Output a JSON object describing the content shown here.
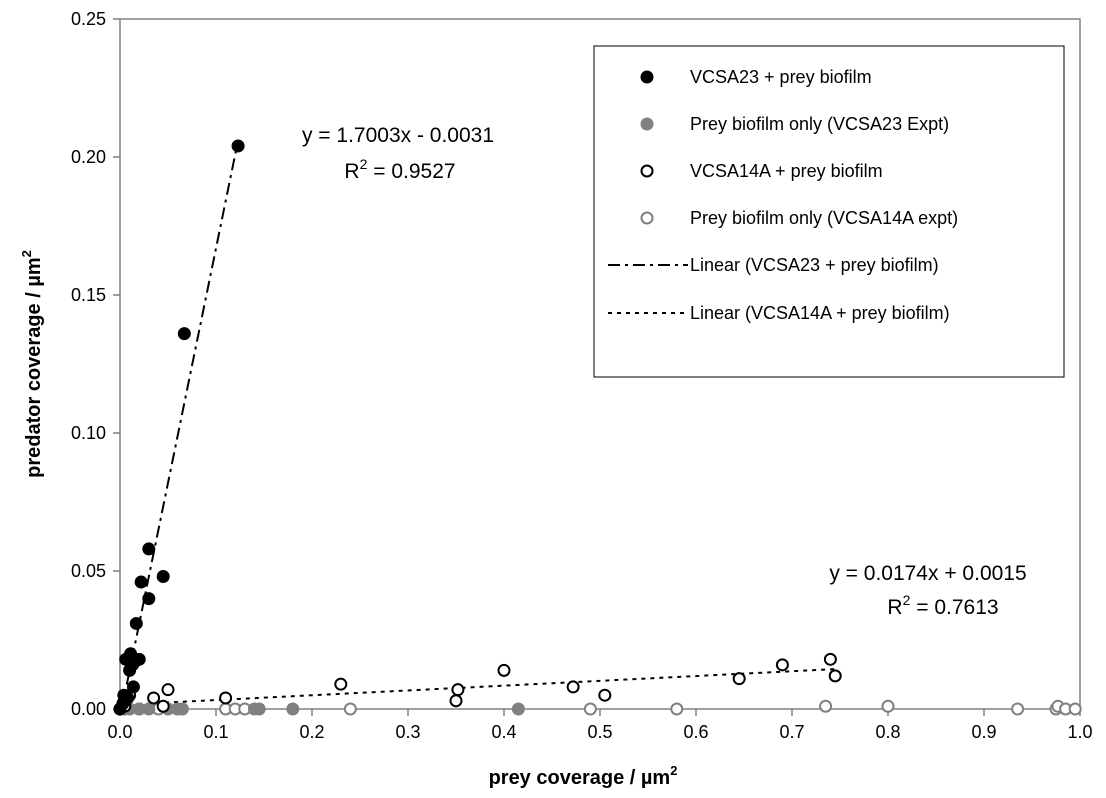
{
  "chart_data": {
    "type": "scatter",
    "title": "",
    "xlabel": "prey coverage / µm",
    "xlabel_sup": "2",
    "ylabel": "predator coverage / µm",
    "ylabel_sup": "2",
    "xlim": [
      0,
      1.0
    ],
    "ylim": [
      0,
      0.25
    ],
    "xticks": [
      "0.0",
      "0.1",
      "0.2",
      "0.3",
      "0.4",
      "0.5",
      "0.6",
      "0.7",
      "0.8",
      "0.9",
      "1.0"
    ],
    "yticks": [
      "0.00",
      "0.05",
      "0.10",
      "0.15",
      "0.20",
      "0.25"
    ],
    "grid": false,
    "legend_position": "top-right",
    "series": [
      {
        "name": "VCSA23 + prey biofilm",
        "marker": "filled-circle",
        "color": "#000000",
        "points": [
          [
            0.0,
            0.0
          ],
          [
            0.003,
            0.002
          ],
          [
            0.004,
            0.005
          ],
          [
            0.006,
            0.018
          ],
          [
            0.008,
            0.004
          ],
          [
            0.01,
            0.014
          ],
          [
            0.011,
            0.02
          ],
          [
            0.012,
            0.019
          ],
          [
            0.013,
            0.016
          ],
          [
            0.014,
            0.008
          ],
          [
            0.015,
            0.017
          ],
          [
            0.017,
            0.031
          ],
          [
            0.02,
            0.018
          ],
          [
            0.022,
            0.046
          ],
          [
            0.03,
            0.058
          ],
          [
            0.03,
            0.04
          ],
          [
            0.045,
            0.048
          ],
          [
            0.067,
            0.136
          ],
          [
            0.123,
            0.204
          ]
        ]
      },
      {
        "name": "Prey biofilm only (VCSA23 Expt)",
        "marker": "filled-circle",
        "color": "#808080",
        "points": [
          [
            0.0,
            0.0
          ],
          [
            0.005,
            0.0
          ],
          [
            0.01,
            0.0
          ],
          [
            0.02,
            0.0
          ],
          [
            0.03,
            0.0
          ],
          [
            0.05,
            0.0
          ],
          [
            0.06,
            0.0
          ],
          [
            0.065,
            0.0
          ],
          [
            0.14,
            0.0
          ],
          [
            0.145,
            0.0
          ],
          [
            0.18,
            0.0
          ],
          [
            0.415,
            0.0
          ]
        ]
      },
      {
        "name": "VCSA14A + prey biofilm",
        "marker": "open-circle",
        "color": "#000000",
        "points": [
          [
            0.005,
            0.001
          ],
          [
            0.01,
            0.005
          ],
          [
            0.035,
            0.004
          ],
          [
            0.045,
            0.001
          ],
          [
            0.05,
            0.007
          ],
          [
            0.11,
            0.004
          ],
          [
            0.23,
            0.009
          ],
          [
            0.35,
            0.003
          ],
          [
            0.352,
            0.007
          ],
          [
            0.4,
            0.014
          ],
          [
            0.472,
            0.008
          ],
          [
            0.505,
            0.005
          ],
          [
            0.645,
            0.011
          ],
          [
            0.69,
            0.016
          ],
          [
            0.74,
            0.018
          ],
          [
            0.745,
            0.012
          ]
        ]
      },
      {
        "name": "Prey biofilm only (VCSA14A expt)",
        "marker": "open-circle",
        "color": "#808080",
        "points": [
          [
            0.0,
            0.0
          ],
          [
            0.02,
            0.0
          ],
          [
            0.04,
            0.0
          ],
          [
            0.06,
            0.0
          ],
          [
            0.11,
            0.0
          ],
          [
            0.12,
            0.0
          ],
          [
            0.13,
            0.0
          ],
          [
            0.24,
            0.0
          ],
          [
            0.49,
            0.0
          ],
          [
            0.58,
            0.0
          ],
          [
            0.735,
            0.001
          ],
          [
            0.8,
            0.001
          ],
          [
            0.935,
            0.0
          ],
          [
            0.975,
            0.0
          ],
          [
            0.977,
            0.001
          ],
          [
            0.985,
            0.0
          ],
          [
            0.995,
            0.0
          ]
        ]
      }
    ],
    "trendlines": [
      {
        "name": "Linear (VCSA23 + prey biofilm)",
        "style": "dash-dot",
        "slope": 1.7003,
        "intercept": -0.0031,
        "x_range": [
          0.0,
          0.123
        ],
        "equation": "y = 1.7003x - 0.0031",
        "r2_label": "R",
        "r2_sup": "2",
        "r2_value": " = 0.9527"
      },
      {
        "name": "Linear (VCSA14A + prey biofilm)",
        "style": "dotted",
        "slope": 0.0174,
        "intercept": 0.0015,
        "x_range": [
          0.0,
          0.745
        ],
        "equation": "y = 0.0174x + 0.0015",
        "r2_label": "R",
        "r2_sup": "2",
        "r2_value": " = 0.7613"
      }
    ]
  }
}
